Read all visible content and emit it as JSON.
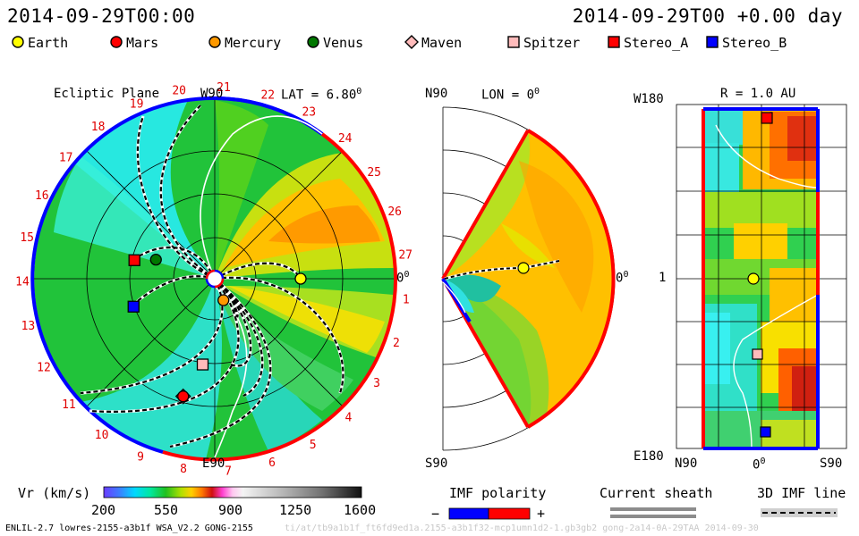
{
  "header": {
    "left_time": "2014-09-29T00:00",
    "right_time": "2014-09-29T00 +0.00 day"
  },
  "legend": [
    {
      "name": "Earth",
      "shape": "circle",
      "color": "#ffff00"
    },
    {
      "name": "Mars",
      "shape": "circle",
      "color": "#ff0000"
    },
    {
      "name": "Mercury",
      "shape": "circle",
      "color": "#ff9900"
    },
    {
      "name": "Venus",
      "shape": "circle",
      "color": "#007700"
    },
    {
      "name": "Maven",
      "shape": "diamond",
      "color": "#ffbbbb"
    },
    {
      "name": "Spitzer",
      "shape": "square",
      "color": "#ffbbbb"
    },
    {
      "name": "Stereo_A",
      "shape": "square",
      "color": "#ff0000"
    },
    {
      "name": "Stereo_B",
      "shape": "square",
      "color": "#0000ff"
    }
  ],
  "chart_data": [
    {
      "type": "heatmap",
      "panel": "ecliptic",
      "title": "Ecliptic Plane",
      "lat_label": "LAT = 6.80",
      "lat_sup": "0",
      "top_label": "W90",
      "bottom_label": "E90",
      "right_label": "0",
      "right_sup": "0",
      "sector_numbers": [
        "1",
        "2",
        "3",
        "4",
        "5",
        "6",
        "7",
        "8",
        "9",
        "10",
        "11",
        "12",
        "13",
        "14",
        "15",
        "16",
        "17",
        "18",
        "19",
        "20",
        "21",
        "22",
        "23",
        "24",
        "25",
        "26",
        "27"
      ],
      "bodies": [
        {
          "name": "Earth",
          "radius_au": 1.0,
          "lon_deg": 0
        },
        {
          "name": "Venus",
          "radius_au": 0.72,
          "lon_deg": 162
        },
        {
          "name": "Mercury",
          "radius_au": 0.27,
          "lon_deg": -68
        },
        {
          "name": "Mars",
          "radius_au": 1.42,
          "lon_deg": -105
        },
        {
          "name": "Maven",
          "radius_au": 1.42,
          "lon_deg": -105
        },
        {
          "name": "Spitzer",
          "radius_au": 1.01,
          "lon_deg": -98
        },
        {
          "name": "Stereo_A",
          "radius_au": 0.96,
          "lon_deg": 167
        },
        {
          "name": "Stereo_B",
          "radius_au": 1.0,
          "lon_deg": -161
        }
      ]
    },
    {
      "type": "heatmap",
      "panel": "meridional",
      "top_label": "N90",
      "lon_label": "LON = 0",
      "lon_sup": "0",
      "bottom_label": "S90",
      "right_label": "0",
      "right_sup": "0"
    },
    {
      "type": "heatmap",
      "panel": "radial",
      "r_label": "R = 1.0 AU",
      "y_top_label": "W180",
      "y_mid_label": "1",
      "y_bottom_label": "E180",
      "x_left_label": "N90",
      "x_mid_label": "0",
      "x_mid_sup": "0",
      "x_right_label": "S90"
    }
  ],
  "colorbar": {
    "label": "Vr (km/s)",
    "ticks": [
      "200",
      "550",
      "900",
      "1250",
      "1600"
    ],
    "min": 200,
    "max": 1600
  },
  "imf_polarity": {
    "label": "IMF polarity",
    "minus": "−",
    "plus": "+"
  },
  "current_sheath": {
    "label": "Current sheath"
  },
  "imf_line": {
    "label": "3D IMF line"
  },
  "footer": {
    "left": "ENLIL-2.7 lowres-2155-a3b1f WSA_V2.2 GONG-2155",
    "right": "ti/at/tb9a1b1f_ft6fd9ed1a.2155-a3b1f32-mcp1umn1d2-1.gb3gb2 gong-2a14-0A-29TAA 2014-09-30"
  },
  "colors": {
    "polarity_negative": "#0000ff",
    "polarity_positive": "#ff0000"
  }
}
